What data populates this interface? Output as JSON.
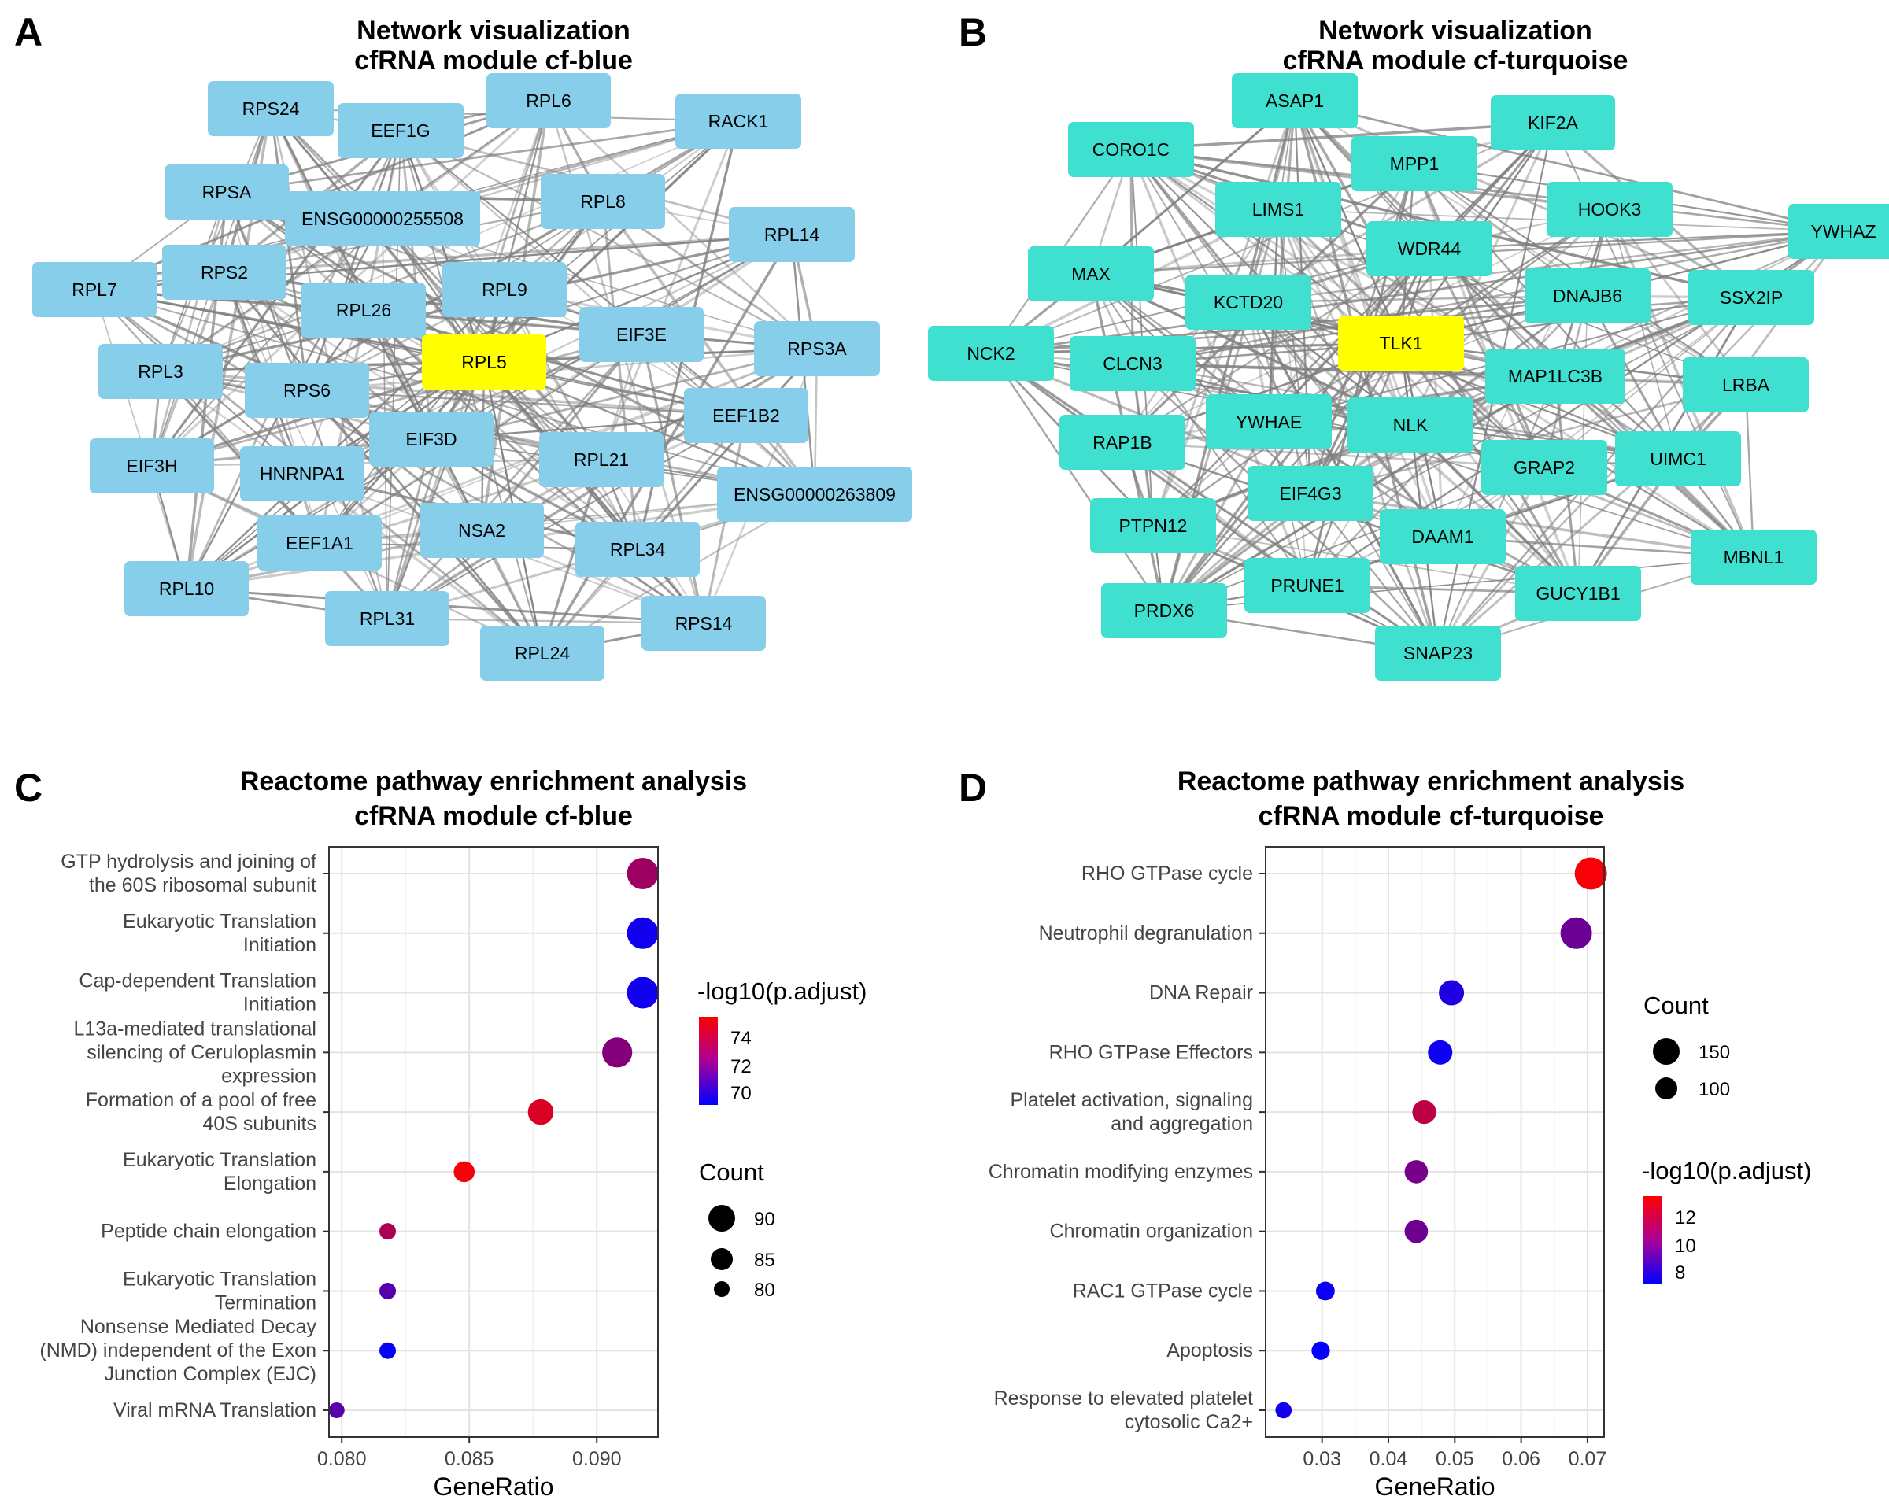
{
  "panels": {
    "A": {
      "letter": "A",
      "title_line1": "Network visualization",
      "title_line2": "cfRNA module cf-blue",
      "node_color": "#87CEEB",
      "hub_color": "#FFFF00",
      "edge_color": "#7f7f7f",
      "hub": "RPL5",
      "nodes": [
        "RPS24",
        "EEF1G",
        "RPL6",
        "RACK1",
        "RPSA",
        "ENSG00000255508",
        "RPL8",
        "RPL14",
        "RPL7",
        "RPS2",
        "RPL26",
        "RPL9",
        "EIF3E",
        "RPS3A",
        "RPL3",
        "RPS6",
        "RPL5",
        "EEF1B2",
        "EIF3H",
        "HNRNPA1",
        "EIF3D",
        "RPL21",
        "ENSG00000263809",
        "EEF1A1",
        "NSA2",
        "RPL34",
        "RPL10",
        "RPL31",
        "RPL24",
        "RPS14"
      ]
    },
    "B": {
      "letter": "B",
      "title_line1": "Network visualization",
      "title_line2": "cfRNA module cf-turquoise",
      "node_color": "#40E0D0",
      "hub_color": "#FFFF00",
      "edge_color": "#7f7f7f",
      "hub": "TLK1",
      "nodes": [
        "ASAP1",
        "KIF2A",
        "CORO1C",
        "MPP1",
        "LIMS1",
        "HOOK3",
        "YWHAZ",
        "WDR44",
        "MAX",
        "KCTD20",
        "DNAJB6",
        "SSX2IP",
        "TLK1",
        "NCK2",
        "CLCN3",
        "MAP1LC3B",
        "LRBA",
        "YWHAE",
        "NLK",
        "RAP1B",
        "GRAP2",
        "UIMC1",
        "EIF4G3",
        "PTPN12",
        "DAAM1",
        "MBNL1",
        "PRUNE1",
        "PRDX6",
        "GUCY1B1",
        "SNAP23"
      ]
    },
    "C": {
      "letter": "C",
      "title_line1": "Reactome pathway enrichment analysis",
      "title_line2": "cfRNA module cf-blue",
      "legend_color_title": "-log10(p.adjust)",
      "legend_size_title": "Count",
      "color_ticks": [
        "74",
        "72",
        "70"
      ],
      "size_ticks": [
        "90",
        "85",
        "80"
      ]
    },
    "D": {
      "letter": "D",
      "title_line1": "Reactome pathway enrichment analysis",
      "title_line2": "cfRNA module cf-turquoise",
      "legend_color_title": "-log10(p.adjust)",
      "legend_size_title": "Count",
      "color_ticks": [
        "12",
        "10",
        "8"
      ],
      "size_ticks": [
        "150",
        "100"
      ]
    }
  },
  "chart_data": [
    {
      "type": "scatter",
      "panel": "C",
      "title": "Reactome pathway enrichment analysis cfRNA module cf-blue",
      "xlabel": "GeneRatio",
      "ylabel": "",
      "xlim": [
        0.0795,
        0.0924
      ],
      "xticks": [
        0.08,
        0.085,
        0.09
      ],
      "xtick_labels": [
        "0.080",
        "0.085",
        "0.090"
      ],
      "grid": true,
      "color_range": [
        69.2,
        75.2
      ],
      "color_scale": [
        "#0000FF",
        "#FF0000"
      ],
      "size_range": [
        79.5,
        91
      ],
      "categories": [
        {
          "lines": [
            "GTP hydrolysis and joining of",
            "the 60S ribosomal subunit"
          ]
        },
        {
          "lines": [
            "Eukaryotic Translation",
            "Initiation"
          ]
        },
        {
          "lines": [
            "Cap-dependent Translation",
            "Initiation"
          ]
        },
        {
          "lines": [
            "L13a-mediated translational",
            "silencing of Ceruloplasmin",
            "expression"
          ]
        },
        {
          "lines": [
            "Formation of a pool of free",
            "40S subunits"
          ]
        },
        {
          "lines": [
            "Eukaryotic Translation",
            "Elongation"
          ]
        },
        {
          "lines": [
            "Peptide chain elongation"
          ]
        },
        {
          "lines": [
            "Eukaryotic Translation",
            "Termination"
          ]
        },
        {
          "lines": [
            "Nonsense Mediated Decay",
            "(NMD) independent of the Exon",
            "Junction Complex (EJC)"
          ]
        },
        {
          "lines": [
            "Viral mRNA Translation"
          ]
        }
      ],
      "points": [
        {
          "x": 0.0918,
          "count": 90,
          "color_value": 72.9
        },
        {
          "x": 0.0918,
          "count": 90,
          "color_value": 69.6
        },
        {
          "x": 0.0918,
          "count": 90,
          "color_value": 69.6
        },
        {
          "x": 0.0908,
          "count": 89,
          "color_value": 72.3
        },
        {
          "x": 0.0878,
          "count": 86,
          "color_value": 74.3
        },
        {
          "x": 0.0848,
          "count": 83,
          "color_value": 75.0
        },
        {
          "x": 0.0818,
          "count": 80,
          "color_value": 73.3
        },
        {
          "x": 0.0818,
          "count": 80,
          "color_value": 71.2
        },
        {
          "x": 0.0818,
          "count": 80,
          "color_value": 69.4
        },
        {
          "x": 0.0798,
          "count": 78,
          "color_value": 71.3
        }
      ]
    },
    {
      "type": "scatter",
      "panel": "D",
      "title": "Reactome pathway enrichment analysis cfRNA module cf-turquoise",
      "xlabel": "GeneRatio",
      "ylabel": "",
      "xlim": [
        0.0215,
        0.0725
      ],
      "xticks": [
        0.03,
        0.04,
        0.05,
        0.06,
        0.07
      ],
      "xtick_labels": [
        "0.03",
        "0.04",
        "0.05",
        "0.06",
        "0.07"
      ],
      "grid": true,
      "color_range": [
        6.5,
        13.4
      ],
      "color_scale": [
        "#0000FF",
        "#FF0000"
      ],
      "size_range": [
        55,
        170
      ],
      "categories": [
        {
          "lines": [
            "RHO GTPase cycle"
          ]
        },
        {
          "lines": [
            "Neutrophil degranulation"
          ]
        },
        {
          "lines": [
            "DNA Repair"
          ]
        },
        {
          "lines": [
            "RHO GTPase Effectors"
          ]
        },
        {
          "lines": [
            "Platelet activation, signaling",
            "and aggregation"
          ]
        },
        {
          "lines": [
            "Chromatin modifying enzymes"
          ]
        },
        {
          "lines": [
            "Chromatin organization"
          ]
        },
        {
          "lines": [
            "RAC1 GTPase cycle"
          ]
        },
        {
          "lines": [
            "Apoptosis"
          ]
        },
        {
          "lines": [
            "Response to elevated platelet",
            "cytosolic Ca2+"
          ]
        }
      ],
      "points": [
        {
          "x": 0.0705,
          "count": 165,
          "color_value": 13.2
        },
        {
          "x": 0.0683,
          "count": 160,
          "color_value": 9.4
        },
        {
          "x": 0.0495,
          "count": 118,
          "color_value": 7.3
        },
        {
          "x": 0.0478,
          "count": 112,
          "color_value": 6.9
        },
        {
          "x": 0.0454,
          "count": 108,
          "color_value": 11.6
        },
        {
          "x": 0.0442,
          "count": 105,
          "color_value": 9.7
        },
        {
          "x": 0.0442,
          "count": 105,
          "color_value": 9.5
        },
        {
          "x": 0.0305,
          "count": 75,
          "color_value": 6.8
        },
        {
          "x": 0.0298,
          "count": 72,
          "color_value": 6.6
        },
        {
          "x": 0.0242,
          "count": 58,
          "color_value": 7.0
        }
      ]
    }
  ]
}
